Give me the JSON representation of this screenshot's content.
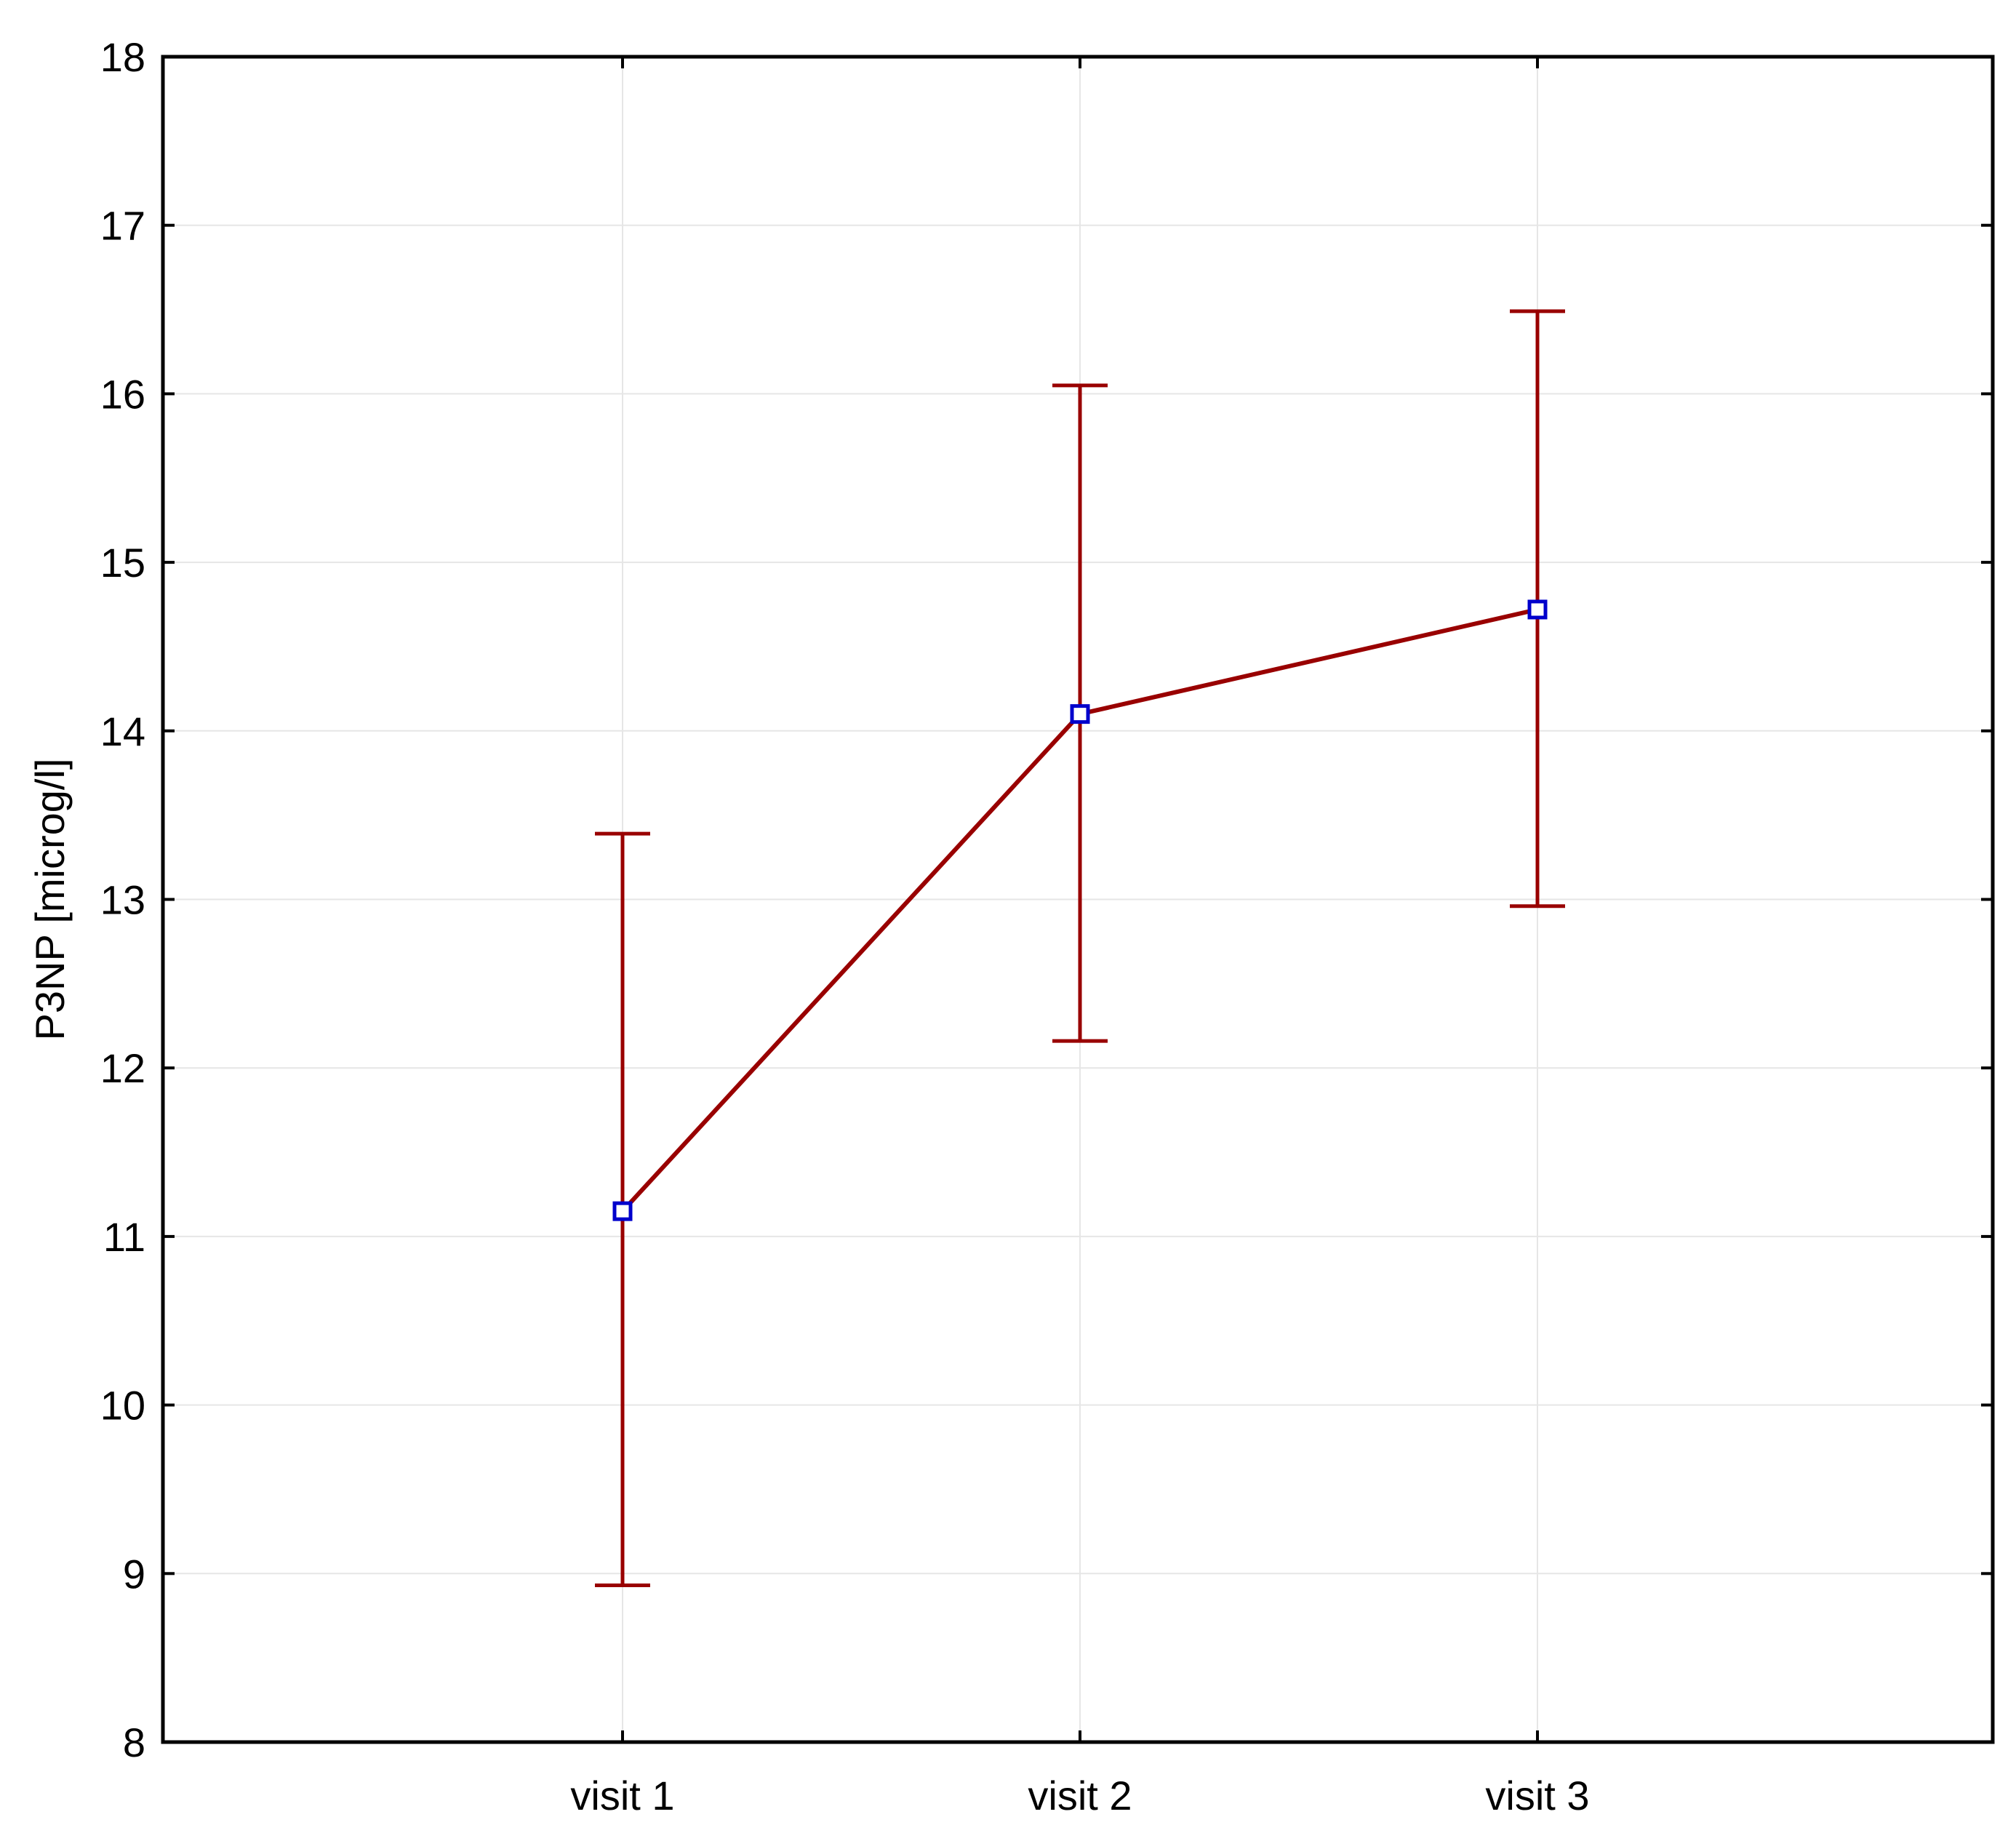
{
  "chart_data": {
    "type": "line",
    "title": "",
    "xlabel": "",
    "ylabel": "P3NP [microg/l]",
    "categories": [
      "visit 1",
      "visit 2",
      "visit 3"
    ],
    "ylim": [
      8,
      18
    ],
    "yticks": [
      "8",
      "9",
      "10",
      "11",
      "12",
      "13",
      "14",
      "15",
      "16",
      "17",
      "18"
    ],
    "grid": true,
    "error_bars": true,
    "series": [
      {
        "values": [
          11.15,
          14.1,
          14.72
        ],
        "lower": [
          8.93,
          12.16,
          12.96
        ],
        "upper": [
          13.39,
          16.05,
          16.49
        ]
      }
    ],
    "colors": {
      "line": "#990000",
      "marker": "#0000cc",
      "grid": "#e6e6e6",
      "axis": "#000000"
    }
  }
}
